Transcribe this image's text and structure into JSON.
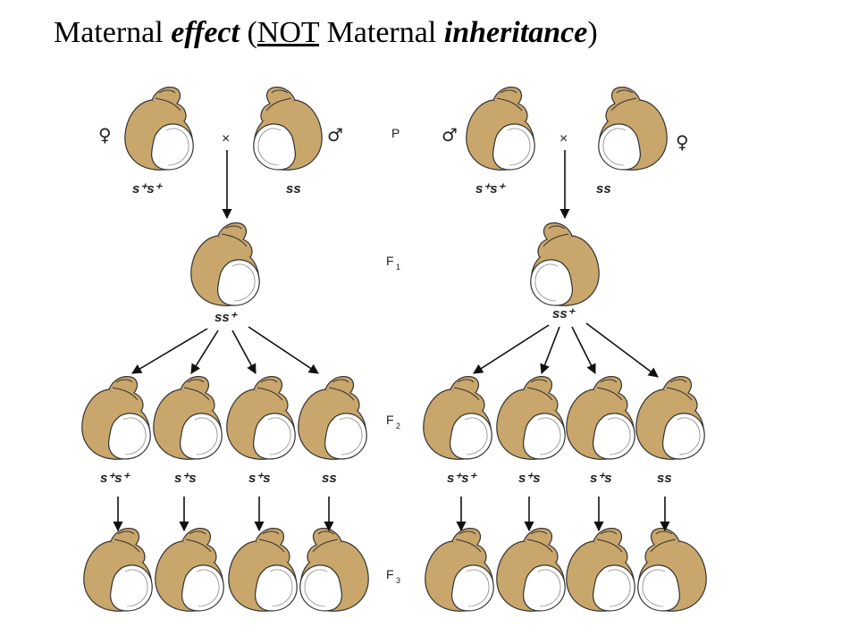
{
  "title": {
    "part1": "Maternal ",
    "part2": "effect",
    "part3": " (",
    "part4": "NOT",
    "part5": " Maternal ",
    "part6": "inheritance",
    "part7": ")"
  },
  "generations": [
    "P",
    "F1",
    "F2",
    "F3"
  ],
  "generation_display": {
    "P": "P",
    "F1": "F",
    "F1_sub": "1",
    "F2": "F",
    "F2_sub": "2",
    "F3": "F",
    "F3_sub": "3"
  },
  "symbols": {
    "female": "♀",
    "male": "♂",
    "cross": "×"
  },
  "colors": {
    "shell": "#c9a66b",
    "outline": "#333333",
    "aperture": "#ffffff"
  },
  "left_cross": {
    "p_labels": [
      "s⁺s⁺",
      "ss"
    ],
    "f1_label": "ss⁺",
    "f2_labels": [
      "s⁺s⁺",
      "s⁺s",
      "s⁺s",
      "ss"
    ]
  },
  "right_cross": {
    "p_labels": [
      "s⁺s⁺",
      "ss"
    ],
    "f1_label": "ss⁺",
    "f2_labels": [
      "s⁺s⁺",
      "s⁺s",
      "s⁺s",
      "ss"
    ]
  }
}
